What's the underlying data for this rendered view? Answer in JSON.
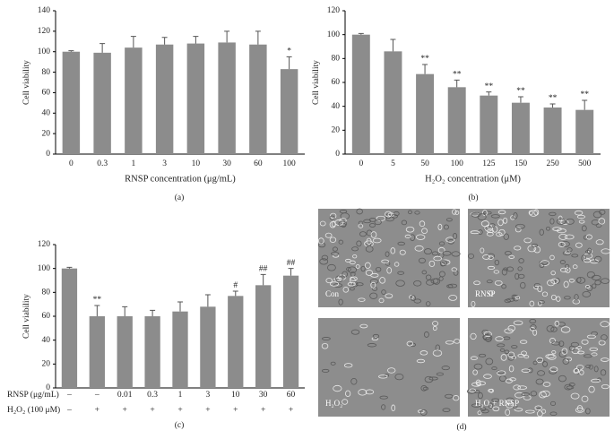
{
  "chart_data": [
    {
      "type": "bar",
      "panel": "(a)",
      "ylabel": "Cell viability",
      "xlabel": "RNSP concentration (μg/mL)",
      "categories": [
        "0",
        "0.3",
        "1",
        "3",
        "10",
        "30",
        "60",
        "100"
      ],
      "values": [
        100,
        99,
        104,
        107,
        108,
        109,
        107,
        83
      ],
      "errors": [
        1,
        9,
        11,
        7,
        7,
        11,
        13,
        12
      ],
      "annotations": [
        null,
        null,
        null,
        null,
        null,
        null,
        null,
        "*"
      ],
      "color": "#8c8c8c",
      "ylim": [
        0,
        140
      ],
      "yticks": [
        0,
        20,
        40,
        60,
        80,
        100,
        120,
        140
      ]
    },
    {
      "type": "bar",
      "panel": "(b)",
      "ylabel": "Cell viability",
      "xlabel": "H₂O₂ concentration (μM)",
      "categories": [
        "0",
        "5",
        "50",
        "100",
        "125",
        "150",
        "250",
        "500"
      ],
      "values": [
        100,
        86,
        67,
        56,
        49,
        43,
        39,
        37
      ],
      "errors": [
        1,
        10,
        8,
        6,
        3,
        5,
        3,
        8
      ],
      "annotations": [
        null,
        null,
        "**",
        "**",
        "**",
        "**",
        "**",
        "**"
      ],
      "color": "#8c8c8c",
      "ylim": [
        0,
        120
      ],
      "yticks": [
        0,
        20,
        40,
        60,
        80,
        100,
        120
      ]
    },
    {
      "type": "bar",
      "panel": "(c)",
      "ylabel": "Cell viability",
      "rows": [
        {
          "label": "RNSP (μg/mL)",
          "cells": [
            "–",
            "–",
            "0.01",
            "0.3",
            "1",
            "3",
            "10",
            "30",
            "60"
          ]
        },
        {
          "label": "H₂O₂ (100 μM)",
          "cells": [
            "–",
            "+",
            "+",
            "+",
            "+",
            "+",
            "+",
            "+",
            "+"
          ]
        }
      ],
      "values": [
        100,
        60,
        60,
        60,
        64,
        68,
        77,
        86,
        94
      ],
      "errors": [
        1,
        9,
        8,
        5,
        8,
        10,
        4,
        9,
        6
      ],
      "annotations": [
        null,
        "**",
        null,
        null,
        null,
        null,
        "#",
        "##",
        "##"
      ],
      "color": "#8c8c8c",
      "ylim": [
        0,
        120
      ],
      "yticks": [
        0,
        20,
        40,
        60,
        80,
        100,
        120
      ]
    }
  ],
  "panel_d": {
    "panel": "(d)",
    "images": [
      "Con",
      "RNSP",
      "H₂O₂",
      "H₂O₂+ RNSP"
    ]
  }
}
